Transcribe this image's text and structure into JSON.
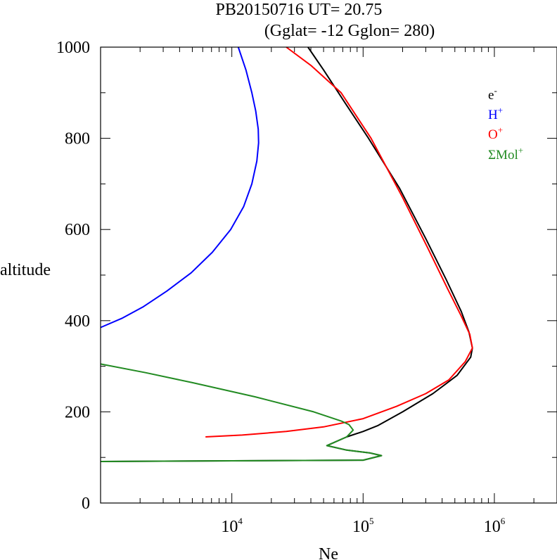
{
  "chart_data": {
    "type": "line",
    "title": "PB20150716   UT=  20.75",
    "subtitle": "(Gglat= -12   Gglon=  280)",
    "xlabel": "Ne",
    "ylabel": "altitude",
    "xscale": "log",
    "xlim": [
      1000,
      3000000
    ],
    "ylim": [
      0,
      1000
    ],
    "x_tick_labels": [
      {
        "base": "10",
        "exp": "4",
        "value": 10000
      },
      {
        "base": "10",
        "exp": "5",
        "value": 100000
      },
      {
        "base": "10",
        "exp": "6",
        "value": 1000000
      }
    ],
    "y_ticks": [
      0,
      200,
      400,
      600,
      800,
      1000
    ],
    "grid": false,
    "legend_position": "top-right",
    "series": [
      {
        "name": "e",
        "name_sup": "-",
        "color": "#000000",
        "points": [
          [
            1000,
            91
          ],
          [
            100000,
            94
          ],
          [
            138000,
            104
          ],
          [
            112000,
            110
          ],
          [
            75000,
            116
          ],
          [
            53000,
            126
          ],
          [
            75000,
            145
          ],
          [
            100000,
            157
          ],
          [
            130000,
            170
          ],
          [
            200000,
            200
          ],
          [
            340000,
            240
          ],
          [
            520000,
            280
          ],
          [
            660000,
            320
          ],
          [
            680000,
            340
          ],
          [
            640000,
            375
          ],
          [
            560000,
            420
          ],
          [
            430000,
            490
          ],
          [
            300000,
            580
          ],
          [
            190000,
            690
          ],
          [
            110000,
            800
          ],
          [
            72000,
            880
          ],
          [
            50000,
            950
          ],
          [
            38000,
            1000
          ]
        ]
      },
      {
        "name": "H",
        "name_sup": "+",
        "color": "#0000ff",
        "points": [
          [
            1000,
            385
          ],
          [
            1450,
            405
          ],
          [
            2100,
            430
          ],
          [
            3200,
            465
          ],
          [
            4900,
            505
          ],
          [
            7100,
            550
          ],
          [
            9800,
            600
          ],
          [
            12300,
            650
          ],
          [
            14200,
            700
          ],
          [
            15500,
            750
          ],
          [
            16000,
            790
          ],
          [
            15900,
            820
          ],
          [
            15200,
            860
          ],
          [
            14200,
            900
          ],
          [
            12800,
            950
          ],
          [
            11200,
            1000
          ]
        ]
      },
      {
        "name": "O",
        "name_sup": "+",
        "color": "#ff0000",
        "points": [
          [
            6300,
            145
          ],
          [
            12000,
            149
          ],
          [
            26000,
            157
          ],
          [
            50000,
            167
          ],
          [
            100000,
            185
          ],
          [
            180000,
            212
          ],
          [
            300000,
            240
          ],
          [
            450000,
            270
          ],
          [
            600000,
            310
          ],
          [
            680000,
            340
          ],
          [
            650000,
            370
          ],
          [
            560000,
            410
          ],
          [
            440000,
            470
          ],
          [
            310000,
            560
          ],
          [
            200000,
            670
          ],
          [
            115000,
            800
          ],
          [
            68000,
            900
          ],
          [
            40000,
            960
          ],
          [
            26000,
            1000
          ]
        ]
      },
      {
        "name": "ΣMol",
        "name_sup": "+",
        "color": "#228b22",
        "points": [
          [
            1000,
            91
          ],
          [
            100000,
            94
          ],
          [
            138000,
            104
          ],
          [
            112000,
            110
          ],
          [
            75000,
            116
          ],
          [
            53000,
            126
          ],
          [
            75000,
            145
          ],
          [
            84000,
            160
          ],
          [
            78000,
            172
          ],
          [
            68000,
            180
          ],
          [
            42000,
            200
          ],
          [
            15000,
            233
          ],
          [
            5000,
            264
          ],
          [
            2200,
            286
          ],
          [
            1000,
            305
          ]
        ]
      }
    ]
  }
}
